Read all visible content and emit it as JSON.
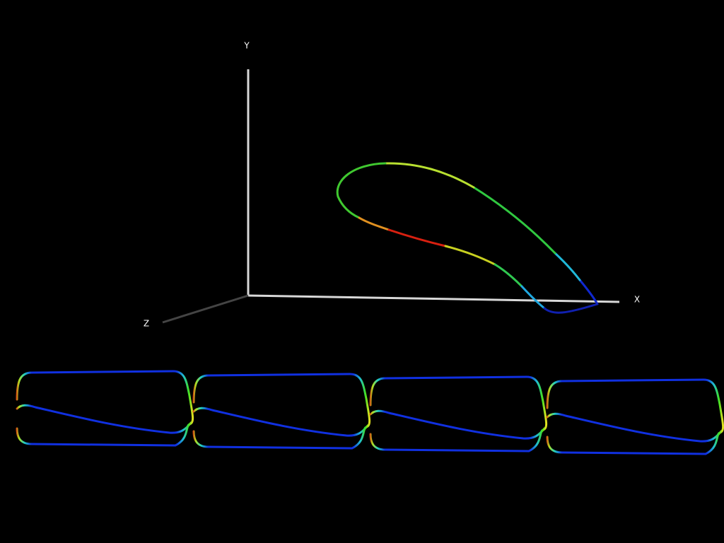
{
  "axes": {
    "y": "Y",
    "x": "X",
    "z": "Z"
  }
}
